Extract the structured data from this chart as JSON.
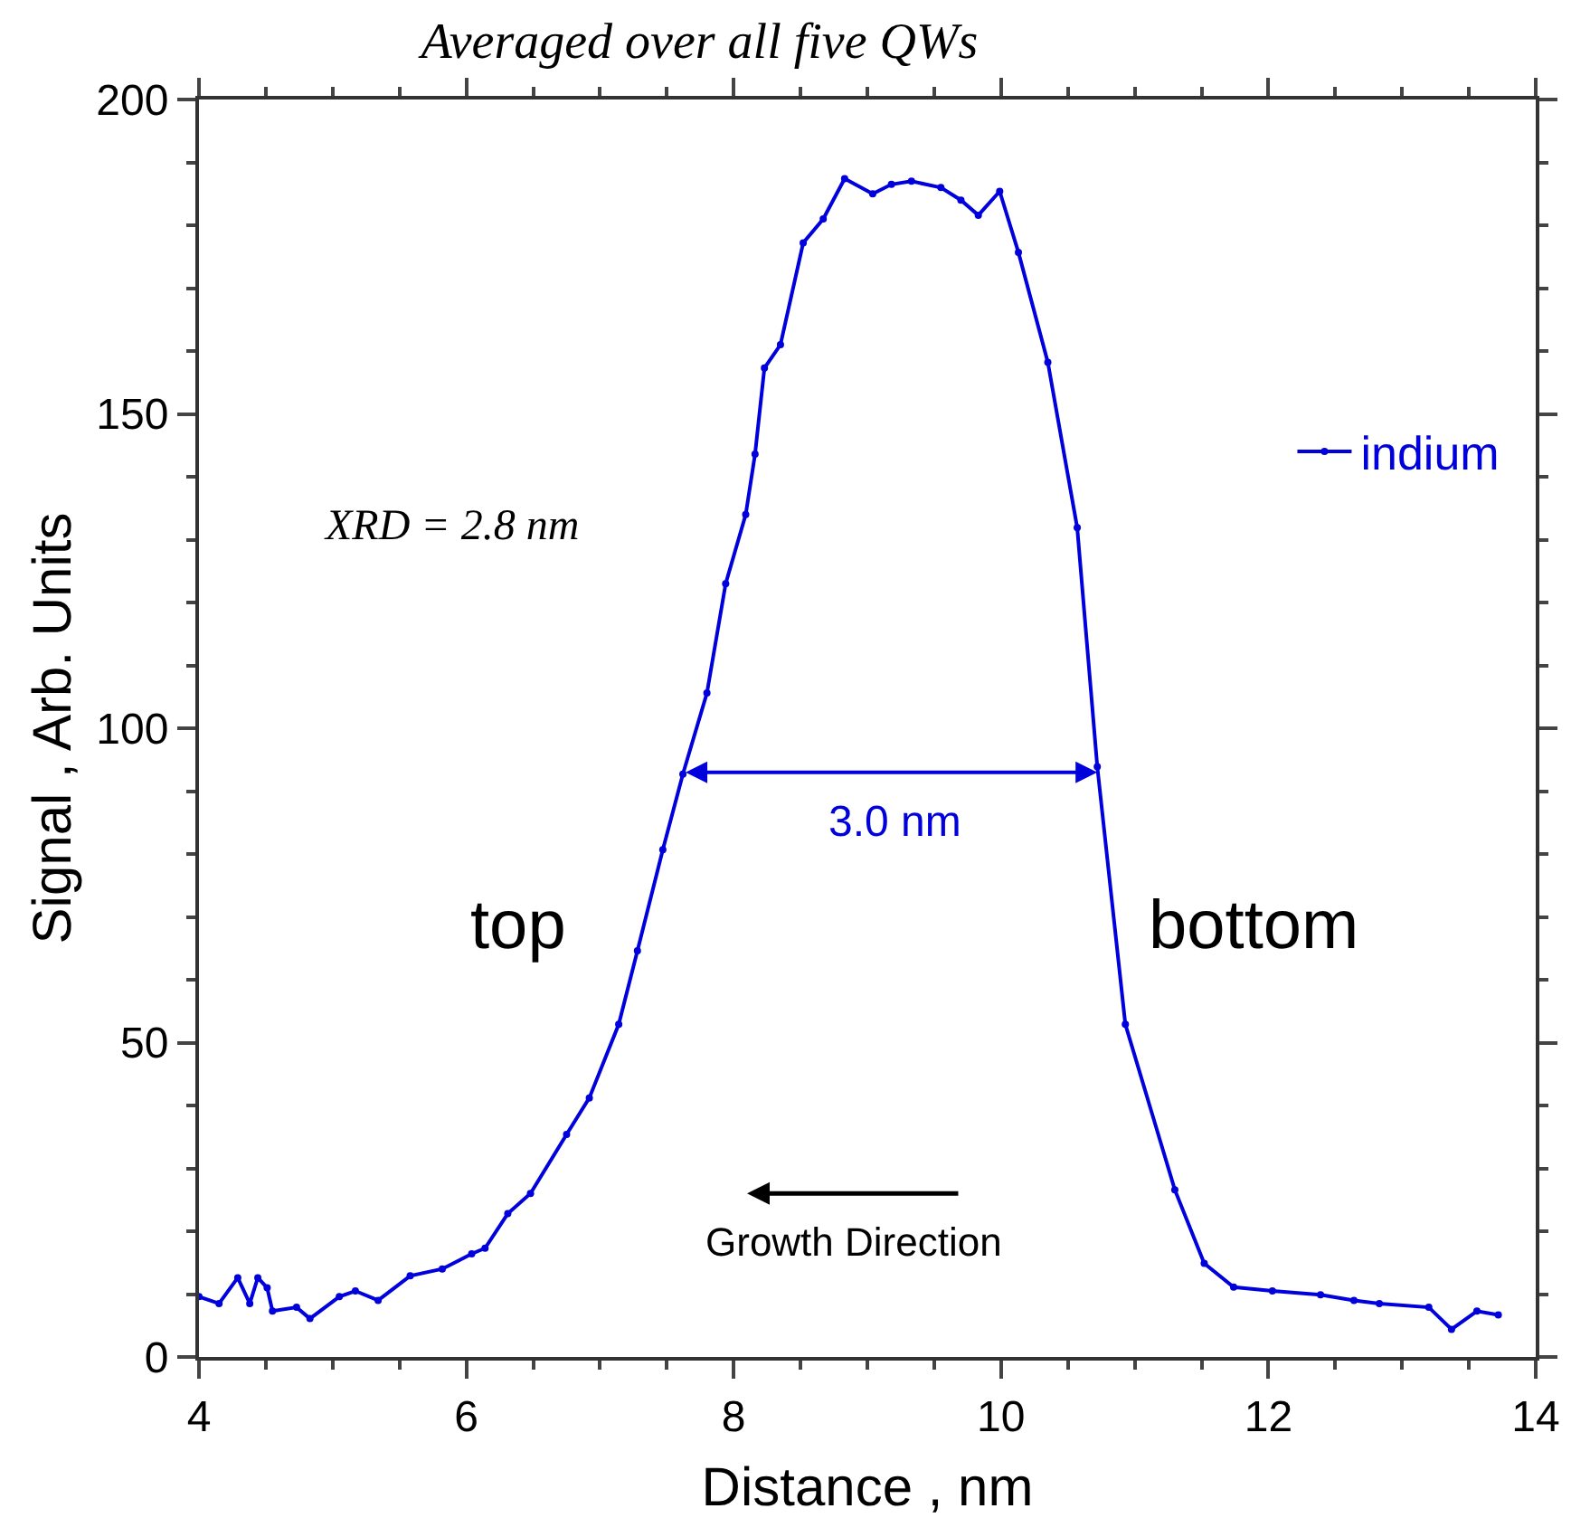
{
  "chart_data": {
    "type": "line",
    "title": "Averaged over all five QWs",
    "xlabel": "Distance , nm",
    "ylabel": "Signal , Arb. Units",
    "x": [
      4.0,
      4.15,
      4.29,
      4.38,
      4.44,
      4.51,
      4.55,
      4.73,
      4.83,
      5.05,
      5.17,
      5.34,
      5.58,
      5.82,
      6.04,
      6.14,
      6.31,
      6.48,
      6.75,
      6.92,
      7.14,
      7.28,
      7.47,
      7.62,
      7.8,
      7.94,
      8.09,
      8.16,
      8.23,
      8.35,
      8.52,
      8.67,
      8.83,
      9.04,
      9.18,
      9.33,
      9.55,
      9.7,
      9.83,
      9.99,
      10.13,
      10.35,
      10.57,
      10.72,
      10.93,
      11.3,
      11.52,
      11.74,
      12.03,
      12.39,
      12.64,
      12.83,
      13.2,
      13.37,
      13.56,
      13.72
    ],
    "series": [
      {
        "name": "indium",
        "color": "#0000dd",
        "values": [
          9.6,
          8.5,
          12.6,
          8.5,
          12.6,
          11,
          7.3,
          7.9,
          6.1,
          9.6,
          10.5,
          9,
          12.9,
          14,
          16.4,
          17.3,
          22.8,
          26,
          35.4,
          41.2,
          52.9,
          64.6,
          80.7,
          92.7,
          105.6,
          123,
          134,
          143.6,
          157.3,
          161,
          177.2,
          181,
          187.4,
          185,
          186.5,
          187,
          186,
          184,
          181.6,
          185.4,
          175.7,
          158.2,
          131.9,
          93.9,
          52.9,
          26.6,
          14.9,
          11.1,
          10.5,
          9.9,
          9,
          8.5,
          7.9,
          4.4,
          7.3,
          6.7
        ]
      }
    ],
    "xlim": [
      4,
      14
    ],
    "xticks": [
      4,
      6,
      8,
      10,
      12,
      14
    ],
    "ylim": [
      0,
      200
    ],
    "yticks": [
      0,
      50,
      100,
      150,
      200
    ],
    "grid": false,
    "legend": "right",
    "marker": "circle",
    "line_style": "solid",
    "annotations": [
      "XRD = 2.8 nm",
      "3.0 nm",
      "top",
      "bottom",
      "Growth Direction"
    ]
  }
}
